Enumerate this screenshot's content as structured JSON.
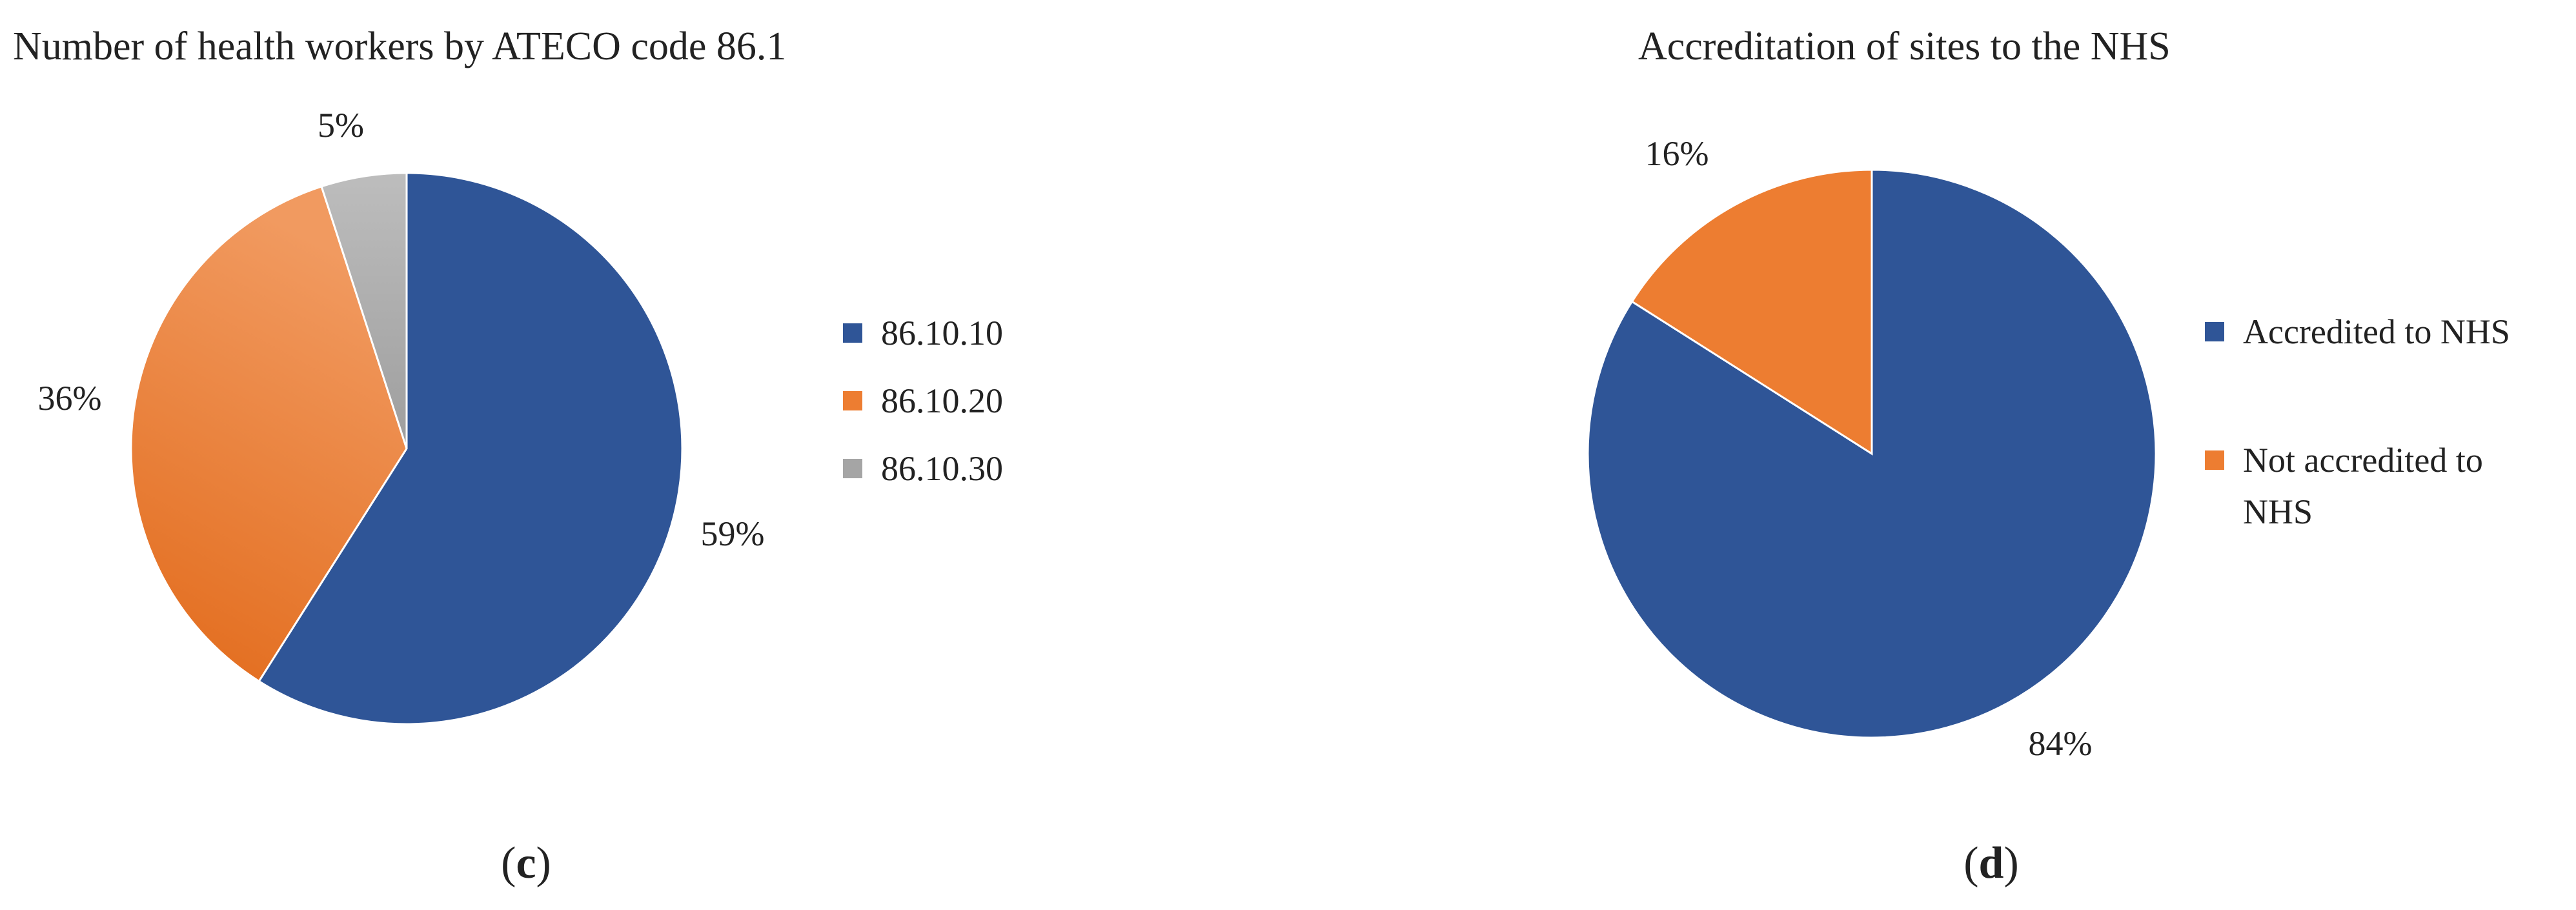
{
  "chart_data": [
    {
      "type": "pie",
      "title": "Number of health workers by ATECO code 86.1",
      "categories": [
        "86.10.10",
        "86.10.20",
        "86.10.30"
      ],
      "values": [
        59,
        36,
        5
      ],
      "value_labels": [
        "59%",
        "36%",
        "5%"
      ],
      "colors": [
        "#2F5597",
        "#ED7D31",
        "#A5A5A5"
      ],
      "start_angle_deg": 0,
      "direction": "clockwise",
      "legend": {
        "entries": [
          "86.10.10",
          "86.10.20",
          "86.10.30"
        ],
        "position": "right"
      },
      "panel_label": {
        "open": "(",
        "letter": "c",
        "close": ")"
      }
    },
    {
      "type": "pie",
      "title": "Accreditation of sites to the NHS",
      "categories": [
        "Accredited to NHS",
        "Not accredited to NHS"
      ],
      "values": [
        84,
        16
      ],
      "value_labels": [
        "84%",
        "16%"
      ],
      "colors": [
        "#2F5597",
        "#ED7D31"
      ],
      "start_angle_deg": 0,
      "direction": "clockwise",
      "legend": {
        "entries": [
          "Accredited to NHS",
          "Not accredited to NHS"
        ],
        "entry_lines": [
          [
            "Accredited to NHS"
          ],
          [
            "Not accredited to",
            "NHS"
          ]
        ],
        "position": "right"
      },
      "panel_label": {
        "open": "(",
        "letter": "d",
        "close": ")"
      }
    }
  ]
}
